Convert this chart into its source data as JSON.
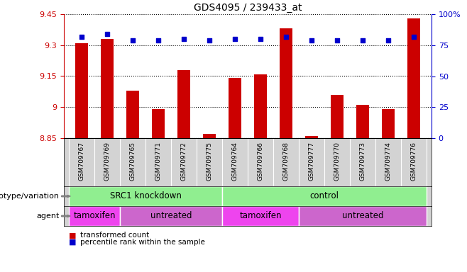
{
  "title": "GDS4095 / 239433_at",
  "samples": [
    "GSM709767",
    "GSM709769",
    "GSM709765",
    "GSM709771",
    "GSM709772",
    "GSM709775",
    "GSM709764",
    "GSM709766",
    "GSM709768",
    "GSM709777",
    "GSM709770",
    "GSM709773",
    "GSM709774",
    "GSM709776"
  ],
  "bar_values": [
    9.31,
    9.33,
    9.08,
    8.99,
    9.18,
    8.87,
    9.14,
    9.16,
    9.38,
    8.86,
    9.06,
    9.01,
    8.99,
    9.43
  ],
  "dot_values": [
    82,
    84,
    79,
    79,
    80,
    79,
    80,
    80,
    82,
    79,
    79,
    79,
    79,
    82
  ],
  "ymin": 8.85,
  "ymax": 9.45,
  "yticks": [
    8.85,
    9.0,
    9.15,
    9.3,
    9.45
  ],
  "ytick_labels": [
    "8.85",
    "9",
    "9.15",
    "9.3",
    "9.45"
  ],
  "y2ticks": [
    0,
    25,
    50,
    75,
    100
  ],
  "y2tick_labels": [
    "0",
    "25",
    "50",
    "75",
    "100%"
  ],
  "bar_color": "#CC0000",
  "dot_color": "#0000CC",
  "genotype_groups": [
    {
      "label": "SRC1 knockdown",
      "start": 0,
      "end": 6,
      "color": "#90EE90"
    },
    {
      "label": "control",
      "start": 6,
      "end": 14,
      "color": "#90EE90"
    }
  ],
  "agent_groups": [
    {
      "label": "tamoxifen",
      "start": 0,
      "end": 2,
      "color": "#EE44EE"
    },
    {
      "label": "untreated",
      "start": 2,
      "end": 6,
      "color": "#CC66CC"
    },
    {
      "label": "tamoxifen",
      "start": 6,
      "end": 9,
      "color": "#EE44EE"
    },
    {
      "label": "untreated",
      "start": 9,
      "end": 14,
      "color": "#CC66CC"
    }
  ],
  "legend_items": [
    {
      "label": "transformed count",
      "color": "#CC0000"
    },
    {
      "label": "percentile rank within the sample",
      "color": "#0000CC"
    }
  ],
  "genotype_label": "genotype/variation",
  "agent_label": "agent",
  "background_color": "#FFFFFF",
  "plot_bg_color": "#FFFFFF",
  "left_axis_color": "#CC0000",
  "right_axis_color": "#0000CC",
  "xtick_bg_color": "#D3D3D3"
}
